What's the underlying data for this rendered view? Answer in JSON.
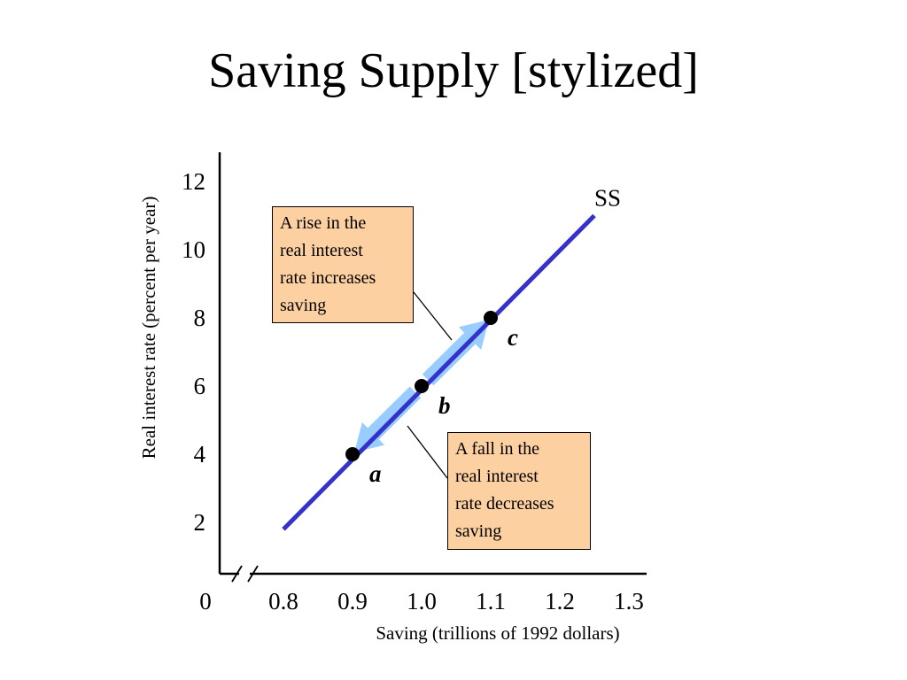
{
  "slide": {
    "title": "Saving Supply [stylized]"
  },
  "chart_data": {
    "type": "line",
    "title": "Saving Supply [stylized]",
    "xlabel": "Saving (trillions of 1992 dollars)",
    "ylabel": "Real interest rate (percent per year)",
    "origin_label": "0",
    "x_ticks": [
      0.8,
      0.9,
      1.0,
      1.1,
      1.2,
      1.3
    ],
    "x_tick_labels": [
      "0.8",
      "0.9",
      "1.0",
      "1.1",
      "1.2",
      "1.3"
    ],
    "y_ticks": [
      2,
      4,
      6,
      8,
      10,
      12
    ],
    "y_tick_labels": [
      "2",
      "4",
      "6",
      "8",
      "10",
      "12"
    ],
    "xlim": [
      0.8,
      1.3
    ],
    "ylim": [
      0,
      13
    ],
    "axis_break": true,
    "grid": false,
    "series": [
      {
        "name": "SS",
        "color": "#3333cc",
        "x": [
          0.8,
          1.25
        ],
        "y": [
          1.8,
          11.0
        ]
      }
    ],
    "points": [
      {
        "label": "a",
        "x": 0.9,
        "y": 4
      },
      {
        "label": "b",
        "x": 1.0,
        "y": 6
      },
      {
        "label": "c",
        "x": 1.1,
        "y": 8
      }
    ],
    "arrows": [
      {
        "from": "b",
        "to": "c",
        "color": "#99ccff"
      },
      {
        "from": "b",
        "to": "a",
        "color": "#99ccff"
      }
    ],
    "annotations": [
      {
        "id": "rise",
        "text": "A rise in the\nreal interest\nrate increases\nsaving",
        "fill": "#fcd0a0"
      },
      {
        "id": "fall",
        "text": "A fall in the\nreal interest\nrate decreases\nsaving",
        "fill": "#fcd0a0"
      }
    ]
  }
}
